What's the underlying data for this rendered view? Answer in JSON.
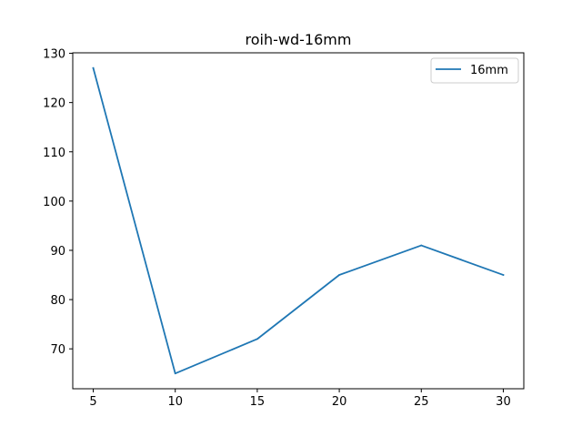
{
  "chart_data": {
    "type": "line",
    "title": "roih-wd-16mm",
    "xlabel": "",
    "ylabel": "",
    "x": [
      5,
      10,
      15,
      20,
      25,
      30
    ],
    "series": [
      {
        "name": "16mm",
        "color": "#1f77b4",
        "values": [
          127,
          65,
          72,
          85,
          91,
          85
        ]
      }
    ],
    "xlim": [
      3.75,
      31.25
    ],
    "ylim": [
      61.9,
      130.1
    ],
    "xticks": [
      5,
      10,
      15,
      20,
      25,
      30
    ],
    "yticks": [
      70,
      80,
      90,
      100,
      110,
      120,
      130
    ],
    "grid": false,
    "legend": "top-right"
  }
}
